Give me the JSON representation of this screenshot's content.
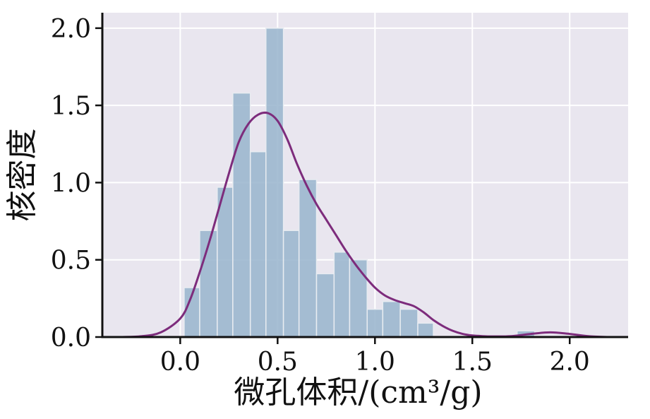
{
  "chart_data": {
    "type": "bar",
    "title": "",
    "xlabel": "微孔体积/(cm³/g)",
    "ylabel": "核密度",
    "xlim": [
      -0.4,
      2.3
    ],
    "ylim": [
      0,
      2.1
    ],
    "x_ticks": [
      "0.0",
      "0.5",
      "1.0",
      "1.5",
      "2.0"
    ],
    "x_tick_values": [
      0.0,
      0.5,
      1.0,
      1.5,
      2.0
    ],
    "y_ticks": [
      "0.0",
      "0.5",
      "1.0",
      "1.5",
      "2.0"
    ],
    "y_tick_values": [
      0.0,
      0.5,
      1.0,
      1.5,
      2.0
    ],
    "grid": true,
    "background_color": "#e9e6ef",
    "bar_color": "#98b4cc",
    "kde_color": "#7d2c7c",
    "histogram": {
      "bin_edges": [
        0.02,
        0.1,
        0.19,
        0.27,
        0.36,
        0.44,
        0.53,
        0.61,
        0.7,
        0.79,
        0.87,
        0.96,
        1.04,
        1.13,
        1.22,
        1.3,
        1.39,
        1.48,
        1.56,
        1.65,
        1.73,
        1.82,
        1.9
      ],
      "densities": [
        0.32,
        0.69,
        0.97,
        1.58,
        1.2,
        2.0,
        0.69,
        1.02,
        0.41,
        0.55,
        0.5,
        0.18,
        0.23,
        0.18,
        0.09,
        0.0,
        0.0,
        0.0,
        0.0,
        0.0,
        0.04,
        0.0
      ]
    },
    "kde": {
      "x": [
        -0.3,
        -0.2,
        -0.1,
        0.0,
        0.05,
        0.1,
        0.15,
        0.2,
        0.25,
        0.3,
        0.35,
        0.4,
        0.45,
        0.5,
        0.55,
        0.6,
        0.65,
        0.7,
        0.75,
        0.8,
        0.85,
        0.9,
        0.95,
        1.0,
        1.05,
        1.1,
        1.15,
        1.2,
        1.25,
        1.3,
        1.35,
        1.4,
        1.45,
        1.5,
        1.55,
        1.6,
        1.7,
        1.8,
        1.9,
        2.0,
        2.1,
        2.2
      ],
      "y": [
        0.0,
        0.005,
        0.03,
        0.12,
        0.24,
        0.42,
        0.62,
        0.84,
        1.06,
        1.26,
        1.38,
        1.44,
        1.45,
        1.4,
        1.28,
        1.12,
        0.98,
        0.86,
        0.76,
        0.66,
        0.56,
        0.47,
        0.39,
        0.32,
        0.27,
        0.24,
        0.22,
        0.2,
        0.16,
        0.11,
        0.07,
        0.04,
        0.02,
        0.01,
        0.006,
        0.004,
        0.006,
        0.02,
        0.03,
        0.02,
        0.005,
        0.0
      ]
    }
  }
}
